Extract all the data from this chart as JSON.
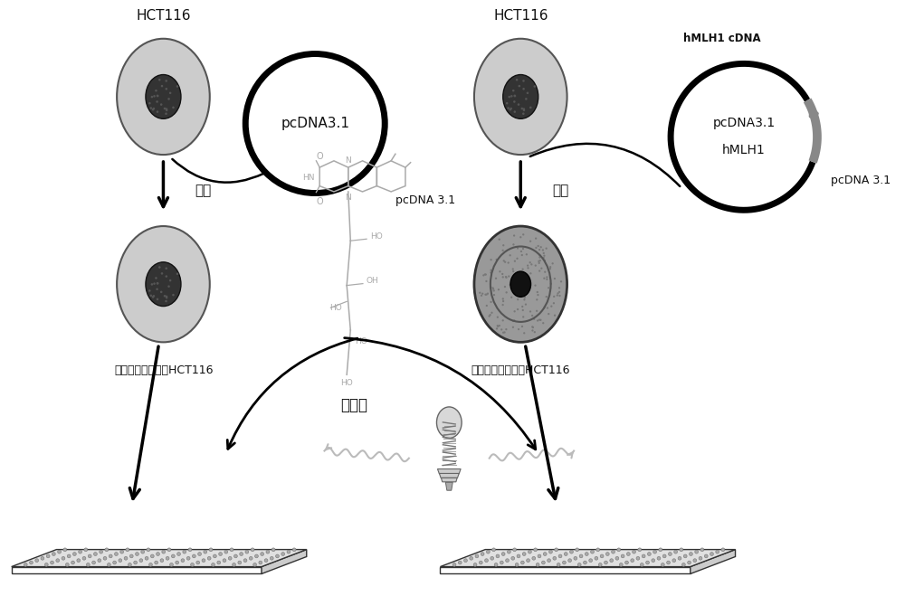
{
  "bg_color": "#ffffff",
  "fig_width": 10.0,
  "fig_height": 6.59,
  "cell_light_color": "#cccccc",
  "cell_dark_color": "#aaaaaa",
  "nucleus_dark_color": "#333333",
  "nucleus_light_color": "#222222",
  "text_color": "#111111",
  "gray_color": "#aaaaaa",
  "label_hct116_left": "HCT116",
  "label_hct116_right": "HCT116",
  "label_transfect_left": "转染",
  "label_transfect_right": "转染",
  "label_pcdna31_circle": "pcDNA3.1",
  "label_pcdna31_below": "pcDNA 3.1",
  "label_pcdna31_hmlh1_line1": "pcDNA3.1",
  "label_pcdna31_hmlh1_line2": "hMLH1",
  "label_hmlh1_cdna": "hMLH1 cDNA",
  "label_pcdna31_right": "pcDNA 3.1",
  "label_mismatch_left": "错配修复系统缺失HCT116",
  "label_mismatch_right": "错配修复系统完整HCT116",
  "label_riboflavin": "核黄素",
  "struct_color": "#aaaaaa",
  "arrow_lw": 2.0,
  "big_arrow_lw": 2.5
}
